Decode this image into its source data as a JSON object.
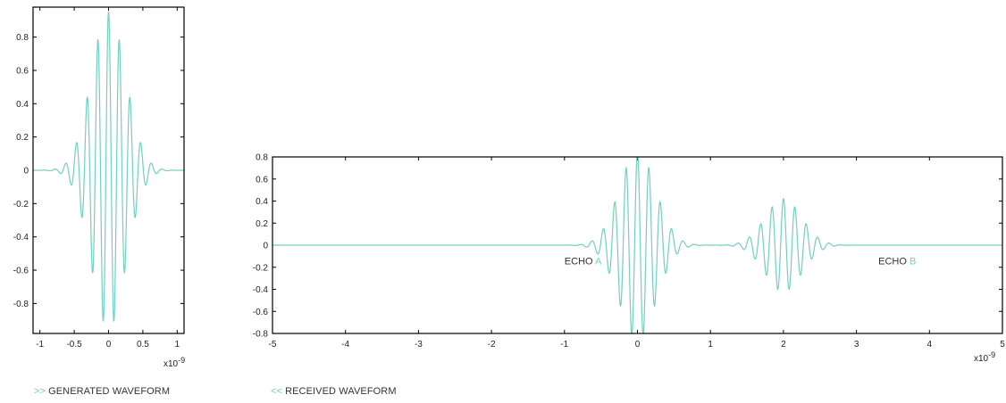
{
  "colors": {
    "wave": "#6fd1bf",
    "axis": "#000000",
    "text": "#222222"
  },
  "captions": {
    "generated": {
      "marker": ">>",
      "label": "GENERATED WAVEFORM"
    },
    "received": {
      "marker": "<<",
      "label": "RECEIVED WAVEFORM"
    }
  },
  "chart_data": [
    {
      "type": "line",
      "title": "",
      "xlabel": "",
      "ylabel": "",
      "x_multiplier": "x10",
      "x_multiplier_exponent": "-9",
      "xlim": [
        -1.1,
        1.1
      ],
      "ylim": [
        -0.98,
        0.98
      ],
      "xticks": [
        -1,
        -0.5,
        0,
        0.5,
        1
      ],
      "xtick_labels": [
        "-1",
        "-0.5",
        "0",
        "0.5",
        "1"
      ],
      "yticks": [
        0.8,
        0.6,
        0.4,
        0.2,
        0,
        -0.2,
        -0.4,
        -0.6,
        -0.8
      ],
      "ytick_labels": [
        "0.8",
        "0.6",
        "0.4",
        "0.2",
        "0",
        "-0.2",
        "-0.4",
        "-0.6",
        "-0.8"
      ],
      "series": [
        {
          "color": "#6fd1bf",
          "pulses": [
            {
              "center": 0.0,
              "amplitude": 0.95,
              "width": 0.25,
              "frequency": 6.4,
              "phase": 0
            }
          ]
        }
      ]
    },
    {
      "type": "line",
      "title": "",
      "xlabel": "",
      "ylabel": "",
      "x_multiplier": "x10",
      "x_multiplier_exponent": "-9",
      "xlim": [
        -5,
        5
      ],
      "ylim": [
        -0.8,
        0.8
      ],
      "xticks": [
        -5,
        -4,
        -3,
        -2,
        -1,
        0,
        1,
        2,
        3,
        4,
        5
      ],
      "xtick_labels": [
        "-5",
        "-4",
        "-3",
        "-2",
        "-1",
        "0",
        "1",
        "2",
        "3",
        "4",
        "5"
      ],
      "yticks": [
        0.8,
        0.6,
        0.4,
        0.2,
        0,
        -0.2,
        -0.4,
        -0.6,
        -0.8
      ],
      "ytick_labels": [
        "0.8",
        "0.6",
        "0.4",
        "0.2",
        "0",
        "-0.2",
        "-0.4",
        "-0.6",
        "-0.8"
      ],
      "annotations": [
        {
          "prefix": "ECHO",
          "letter": "A",
          "x": -1.0,
          "y": -0.14
        },
        {
          "prefix": "ECHO",
          "letter": "B",
          "x": 3.3,
          "y": -0.14
        }
      ],
      "series": [
        {
          "color": "#6fd1bf",
          "pulses": [
            {
              "center": 0.0,
              "amplitude": 0.85,
              "width": 0.25,
              "frequency": 6.4,
              "phase": 0
            },
            {
              "center": 2.0,
              "amplitude": 0.42,
              "width": 0.25,
              "frequency": 6.4,
              "phase": 0
            }
          ]
        }
      ]
    }
  ]
}
